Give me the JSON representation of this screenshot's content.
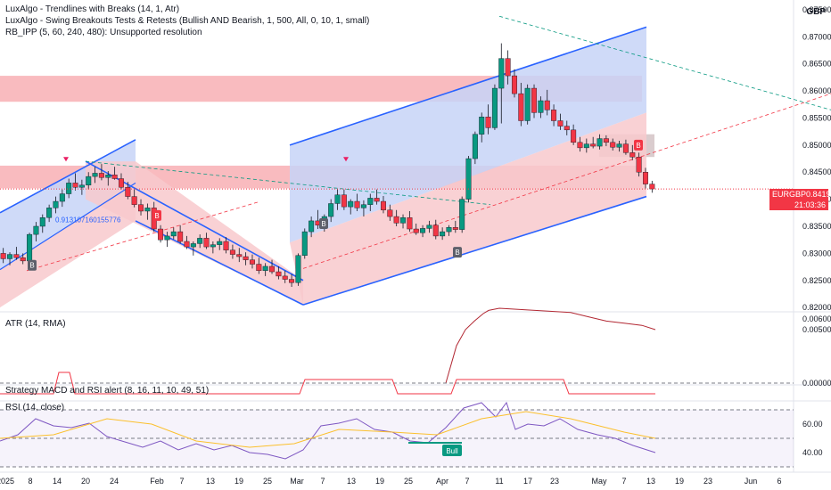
{
  "currency": "GBP",
  "indicators": [
    "LuxAlgo - Trendlines with Breaks (14, 1, Atr)",
    "LuxAlgo - Swing Breakouts Tests & Retests (Bullish AND Bearish, 1, 500, All, 0, 10, 1, small)",
    "RB_IPP (5, 60, 240, 480): Unsupported resolution"
  ],
  "atr_label": "ATR (14, RMA)",
  "strategy_label": "Strategy MACD and RSI alert (8, 16, 11, 10, 49, 51)",
  "rsi_label": "RSI (14, close)",
  "price_tag": {
    "symbol": "EURGBP",
    "price": "0.84190",
    "countdown": "21:03:36"
  },
  "ray_label": "0.913107160155776",
  "bull_label": "Bull",
  "colors": {
    "up": "#089981",
    "down": "#f23645",
    "channel_blue": "#2962ff",
    "rsi_line": "#7e57c2",
    "atr_line": "#b22833",
    "rsi_ma": "#fbc02d"
  },
  "chart_data": {
    "type": "candlestick",
    "price_axis": {
      "ticks": [
        "0.87500",
        "0.87000",
        "0.86500",
        "0.86000",
        "0.85500",
        "0.85000",
        "0.84500",
        "0.84000",
        "0.83500",
        "0.83000",
        "0.82500",
        "0.82000"
      ],
      "range": [
        0.8192,
        0.8768
      ]
    },
    "x_axis_ticks": [
      "2025",
      "8",
      "14",
      "20",
      "24",
      "Feb",
      "7",
      "13",
      "19",
      "25",
      "Mar",
      "7",
      "13",
      "19",
      "25",
      "Apr",
      "7",
      "11",
      "17",
      "23",
      "May",
      "7",
      "13",
      "19",
      "23",
      "Jun",
      "6"
    ],
    "atr_axis": [
      "0.00600",
      "0.00500",
      "0.00000"
    ],
    "rsi_axis": [
      "60.00",
      "40.00"
    ],
    "candles": [
      [
        0.83,
        0.831,
        0.8282,
        0.829
      ],
      [
        0.829,
        0.8302,
        0.8278,
        0.8298
      ],
      [
        0.8298,
        0.8312,
        0.8288,
        0.8292
      ],
      [
        0.8292,
        0.83,
        0.828,
        0.8286
      ],
      [
        0.8286,
        0.8338,
        0.8282,
        0.8335
      ],
      [
        0.8335,
        0.8358,
        0.8322,
        0.835
      ],
      [
        0.835,
        0.8372,
        0.8338,
        0.8366
      ],
      [
        0.8366,
        0.839,
        0.8358,
        0.8384
      ],
      [
        0.8384,
        0.8405,
        0.8374,
        0.8396
      ],
      [
        0.8396,
        0.8418,
        0.8386,
        0.841
      ],
      [
        0.841,
        0.8438,
        0.8402,
        0.843
      ],
      [
        0.843,
        0.8448,
        0.8416,
        0.8422
      ],
      [
        0.8422,
        0.8436,
        0.8408,
        0.8426
      ],
      [
        0.8426,
        0.845,
        0.8418,
        0.8442
      ],
      [
        0.8442,
        0.846,
        0.843,
        0.8448
      ],
      [
        0.8448,
        0.8465,
        0.8435,
        0.844
      ],
      [
        0.844,
        0.8452,
        0.8425,
        0.8445
      ],
      [
        0.8445,
        0.846,
        0.8436,
        0.8438
      ],
      [
        0.8438,
        0.8448,
        0.8418,
        0.8422
      ],
      [
        0.8422,
        0.8432,
        0.84,
        0.8405
      ],
      [
        0.8405,
        0.8418,
        0.8385,
        0.839
      ],
      [
        0.839,
        0.84,
        0.837,
        0.8378
      ],
      [
        0.8378,
        0.8392,
        0.8362,
        0.8384
      ],
      [
        0.8384,
        0.8395,
        0.834,
        0.8345
      ],
      [
        0.8345,
        0.8352,
        0.832,
        0.8325
      ],
      [
        0.8325,
        0.834,
        0.8312,
        0.8332
      ],
      [
        0.8332,
        0.8348,
        0.8326,
        0.834
      ],
      [
        0.834,
        0.8352,
        0.8318,
        0.8322
      ],
      [
        0.8322,
        0.8332,
        0.8308,
        0.8312
      ],
      [
        0.8312,
        0.8322,
        0.8296,
        0.8318
      ],
      [
        0.8318,
        0.8335,
        0.831,
        0.8328
      ],
      [
        0.8328,
        0.8338,
        0.8308,
        0.8312
      ],
      [
        0.8312,
        0.8322,
        0.83,
        0.8316
      ],
      [
        0.8316,
        0.8328,
        0.8306,
        0.8322
      ],
      [
        0.8322,
        0.833,
        0.83,
        0.8306
      ],
      [
        0.8306,
        0.8316,
        0.829,
        0.8298
      ],
      [
        0.8298,
        0.831,
        0.8284,
        0.8294
      ],
      [
        0.8294,
        0.8302,
        0.8278,
        0.8288
      ],
      [
        0.8288,
        0.8298,
        0.8272,
        0.828
      ],
      [
        0.828,
        0.8292,
        0.8262,
        0.8268
      ],
      [
        0.8268,
        0.8282,
        0.8258,
        0.8276
      ],
      [
        0.8276,
        0.8288,
        0.8262,
        0.8266
      ],
      [
        0.8266,
        0.8276,
        0.8252,
        0.8258
      ],
      [
        0.8258,
        0.8268,
        0.8245,
        0.8252
      ],
      [
        0.8252,
        0.8262,
        0.8238,
        0.8246
      ],
      [
        0.8246,
        0.83,
        0.824,
        0.8296
      ],
      [
        0.8296,
        0.8346,
        0.829,
        0.834
      ],
      [
        0.834,
        0.8368,
        0.833,
        0.836
      ],
      [
        0.836,
        0.838,
        0.8345,
        0.8352
      ],
      [
        0.8352,
        0.8372,
        0.834,
        0.8368
      ],
      [
        0.8368,
        0.84,
        0.8358,
        0.8392
      ],
      [
        0.8392,
        0.8418,
        0.838,
        0.8408
      ],
      [
        0.8408,
        0.8418,
        0.838,
        0.8386
      ],
      [
        0.8386,
        0.84,
        0.8372,
        0.8396
      ],
      [
        0.8396,
        0.841,
        0.8378,
        0.8384
      ],
      [
        0.8384,
        0.8398,
        0.8368,
        0.839
      ],
      [
        0.839,
        0.841,
        0.8378,
        0.8402
      ],
      [
        0.8402,
        0.8418,
        0.839,
        0.8396
      ],
      [
        0.8396,
        0.8406,
        0.8374,
        0.838
      ],
      [
        0.838,
        0.839,
        0.836,
        0.8368
      ],
      [
        0.8368,
        0.838,
        0.835,
        0.8356
      ],
      [
        0.8356,
        0.8372,
        0.8346,
        0.8366
      ],
      [
        0.8366,
        0.8378,
        0.834,
        0.8345
      ],
      [
        0.8345,
        0.8355,
        0.8334,
        0.8338
      ],
      [
        0.8338,
        0.8352,
        0.833,
        0.8346
      ],
      [
        0.8346,
        0.836,
        0.8338,
        0.8352
      ],
      [
        0.8352,
        0.8362,
        0.8326,
        0.8332
      ],
      [
        0.8332,
        0.8348,
        0.8325,
        0.834
      ],
      [
        0.834,
        0.8352,
        0.8332,
        0.8348
      ],
      [
        0.8348,
        0.836,
        0.8338,
        0.8344
      ],
      [
        0.8344,
        0.8405,
        0.8338,
        0.84
      ],
      [
        0.84,
        0.848,
        0.8394,
        0.8475
      ],
      [
        0.8475,
        0.8525,
        0.8465,
        0.852
      ],
      [
        0.852,
        0.856,
        0.8505,
        0.8552
      ],
      [
        0.8552,
        0.8575,
        0.852,
        0.8532
      ],
      [
        0.8532,
        0.8612,
        0.8528,
        0.8605
      ],
      [
        0.8605,
        0.8688,
        0.854,
        0.866
      ],
      [
        0.866,
        0.8675,
        0.8612,
        0.8628
      ],
      [
        0.8628,
        0.864,
        0.8588,
        0.8595
      ],
      [
        0.8595,
        0.8615,
        0.8535,
        0.8545
      ],
      [
        0.8545,
        0.8612,
        0.8538,
        0.8605
      ],
      [
        0.8605,
        0.8612,
        0.855,
        0.856
      ],
      [
        0.856,
        0.859,
        0.855,
        0.8582
      ],
      [
        0.8582,
        0.8602,
        0.8555,
        0.8565
      ],
      [
        0.8565,
        0.8575,
        0.8535,
        0.8545
      ],
      [
        0.8545,
        0.8558,
        0.8528,
        0.8535
      ],
      [
        0.8535,
        0.8545,
        0.8518,
        0.8528
      ],
      [
        0.8528,
        0.8538,
        0.85,
        0.8505
      ],
      [
        0.8505,
        0.8515,
        0.8488,
        0.8495
      ],
      [
        0.8495,
        0.8512,
        0.8486,
        0.8502
      ],
      [
        0.8502,
        0.8515,
        0.8494,
        0.8498
      ],
      [
        0.8498,
        0.852,
        0.8492,
        0.8512
      ],
      [
        0.8512,
        0.8518,
        0.8498,
        0.8505
      ],
      [
        0.8505,
        0.8512,
        0.849,
        0.8496
      ],
      [
        0.8496,
        0.8508,
        0.8488,
        0.8502
      ],
      [
        0.8502,
        0.851,
        0.8482,
        0.8486
      ],
      [
        0.8486,
        0.85,
        0.8472,
        0.8478
      ],
      [
        0.8478,
        0.8486,
        0.8442,
        0.845
      ],
      [
        0.845,
        0.8458,
        0.842,
        0.8428
      ],
      [
        0.8428,
        0.8434,
        0.8412,
        0.8419
      ]
    ],
    "candle_x_range": [
      0,
      735
    ]
  }
}
